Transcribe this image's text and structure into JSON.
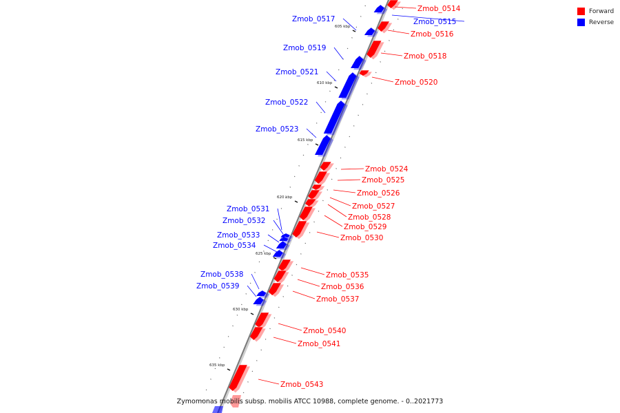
{
  "colors": {
    "forward": "#ff0000",
    "reverse": "#0000ff",
    "backbone": "#7a7a7a"
  },
  "legend": {
    "forward_label": "Forward",
    "reverse_label": "Reverse"
  },
  "caption": "Zymomonas mobilis subsp. mobilis ATCC 10988, complete genome. - 0..2021773",
  "scale_marks": [
    "605 kbp",
    "610 kbp",
    "615 kbp",
    "620 kbp",
    "625 kbp",
    "630 kbp",
    "635 kbp"
  ],
  "genes": [
    {
      "name": "Zmob_0514",
      "strand": "forward"
    },
    {
      "name": "Zmob_0515",
      "strand": "reverse"
    },
    {
      "name": "Zmob_0516",
      "strand": "forward"
    },
    {
      "name": "Zmob_0517",
      "strand": "reverse"
    },
    {
      "name": "Zmob_0518",
      "strand": "forward"
    },
    {
      "name": "Zmob_0519",
      "strand": "reverse"
    },
    {
      "name": "Zmob_0520",
      "strand": "forward"
    },
    {
      "name": "Zmob_0521",
      "strand": "reverse"
    },
    {
      "name": "Zmob_0522",
      "strand": "reverse"
    },
    {
      "name": "Zmob_0523",
      "strand": "reverse"
    },
    {
      "name": "Zmob_0524",
      "strand": "forward"
    },
    {
      "name": "Zmob_0525",
      "strand": "forward"
    },
    {
      "name": "Zmob_0526",
      "strand": "forward"
    },
    {
      "name": "Zmob_0527",
      "strand": "forward"
    },
    {
      "name": "Zmob_0528",
      "strand": "forward"
    },
    {
      "name": "Zmob_0529",
      "strand": "forward"
    },
    {
      "name": "Zmob_0530",
      "strand": "forward"
    },
    {
      "name": "Zmob_0531",
      "strand": "reverse"
    },
    {
      "name": "Zmob_0532",
      "strand": "reverse"
    },
    {
      "name": "Zmob_0533",
      "strand": "reverse"
    },
    {
      "name": "Zmob_0534",
      "strand": "reverse"
    },
    {
      "name": "Zmob_0535",
      "strand": "forward"
    },
    {
      "name": "Zmob_0536",
      "strand": "forward"
    },
    {
      "name": "Zmob_0537",
      "strand": "forward"
    },
    {
      "name": "Zmob_0538",
      "strand": "reverse"
    },
    {
      "name": "Zmob_0539",
      "strand": "reverse"
    },
    {
      "name": "Zmob_0540",
      "strand": "forward"
    },
    {
      "name": "Zmob_0541",
      "strand": "forward"
    },
    {
      "name": "Zmob_0543",
      "strand": "forward"
    }
  ]
}
